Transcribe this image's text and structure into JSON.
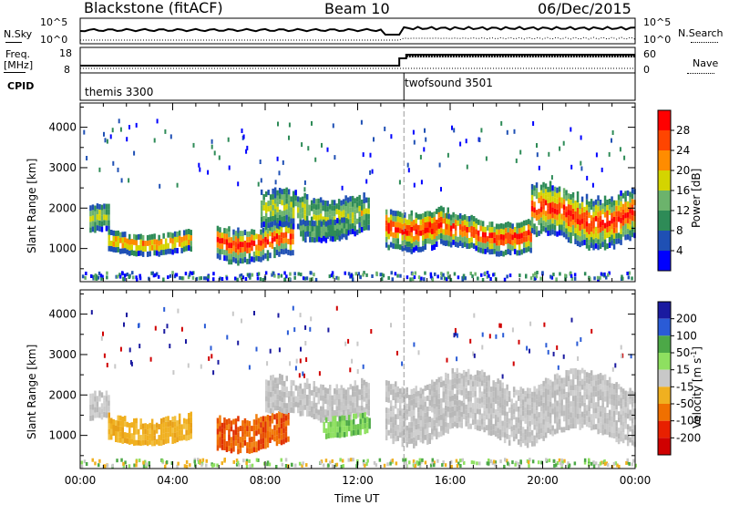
{
  "header": {
    "station": "Blackstone (fitACF)",
    "beam": "Beam 10",
    "date": "06/Dec/2015"
  },
  "noise_panel": {
    "left_label": "N.Sky",
    "right_label": "N.Search",
    "left_ticks": [
      "10^5",
      "10^0"
    ],
    "right_ticks": [
      "10^5",
      "10^0"
    ]
  },
  "freq_panel": {
    "left_label_top": "Freq.",
    "left_label_unit": "[MHz]",
    "right_label": "Nave",
    "left_ticks": [
      "18",
      "8"
    ],
    "right_ticks": [
      "60",
      "0"
    ]
  },
  "cpid_panel": {
    "label": "CPID",
    "modes": [
      {
        "name": "themis 3300",
        "start_hour": 0
      },
      {
        "name": "twofsound 3501",
        "start_hour": 14
      }
    ]
  },
  "chart_data": [
    {
      "type": "heatmap",
      "title": "",
      "xlabel": "Time UT",
      "ylabel": "Slant Range [km]",
      "xlim": [
        0,
        24
      ],
      "ylim": [
        180,
        4600
      ],
      "ytick_labels": [
        "1000",
        "2000",
        "3000",
        "4000"
      ],
      "colorbar": {
        "label": "Power [dB]",
        "ticks": [
          "4",
          "8",
          "12",
          "16",
          "20",
          "24",
          "28"
        ],
        "colors": [
          "#0000ff",
          "#1f50b4",
          "#2e8b57",
          "#6cb36c",
          "#d4d400",
          "#ff8c00",
          "#ff4500",
          "#ff0000"
        ]
      },
      "echo_regions": [
        {
          "t0": 0.4,
          "t1": 1.2,
          "r0": 1300,
          "r1": 1950,
          "level": 3
        },
        {
          "t0": 1.2,
          "t1": 4.8,
          "r0": 850,
          "r1": 1350,
          "level": 5
        },
        {
          "t0": 5.9,
          "t1": 9.2,
          "r0": 700,
          "r1": 1550,
          "level": 6
        },
        {
          "t0": 7.8,
          "t1": 12.5,
          "r0": 1350,
          "r1": 2300,
          "level": 3
        },
        {
          "t0": 9.5,
          "t1": 11.5,
          "r0": 1200,
          "r1": 1700,
          "level": 2
        },
        {
          "t0": 13.2,
          "t1": 16.0,
          "r0": 1000,
          "r1": 2000,
          "level": 6
        },
        {
          "t0": 15.8,
          "t1": 19.5,
          "r0": 900,
          "r1": 1700,
          "level": 6
        },
        {
          "t0": 19.5,
          "t1": 24.0,
          "r0": 1100,
          "r1": 2400,
          "level": 6
        }
      ]
    },
    {
      "type": "heatmap",
      "title": "",
      "xlabel": "Time UT",
      "ylabel": "Slant Range [km]",
      "xlim": [
        0,
        24
      ],
      "ylim": [
        180,
        4600
      ],
      "ytick_labels": [
        "1000",
        "2000",
        "3000",
        "4000"
      ],
      "xtick_labels": [
        "00:00",
        "04:00",
        "08:00",
        "12:00",
        "16:00",
        "20:00",
        "00:00"
      ],
      "colorbar": {
        "label": "Velocity [m s^-1]",
        "ticks": [
          "200",
          "100",
          "50",
          "15",
          "-15",
          "-50",
          "-100",
          "-200"
        ],
        "colors": [
          "#1a1aa0",
          "#2a5bd6",
          "#4ca847",
          "#8ee060",
          "#c8c8c8",
          "#f0b020",
          "#f07000",
          "#e82000",
          "#d00000"
        ]
      },
      "echo_regions": [
        {
          "t0": 0.4,
          "t1": 1.2,
          "r0": 1300,
          "r1": 1950,
          "color": "gray"
        },
        {
          "t0": 1.2,
          "t1": 4.8,
          "r0": 800,
          "r1": 1400,
          "color": "orange"
        },
        {
          "t0": 5.9,
          "t1": 9.0,
          "r0": 650,
          "r1": 1500,
          "color": "red-orange"
        },
        {
          "t0": 8.0,
          "t1": 12.5,
          "r0": 1400,
          "r1": 2300,
          "color": "gray"
        },
        {
          "t0": 10.5,
          "t1": 12.5,
          "r0": 950,
          "r1": 1400,
          "color": "green"
        },
        {
          "t0": 13.2,
          "t1": 24.0,
          "r0": 900,
          "r1": 2400,
          "color": "gray"
        }
      ]
    }
  ]
}
